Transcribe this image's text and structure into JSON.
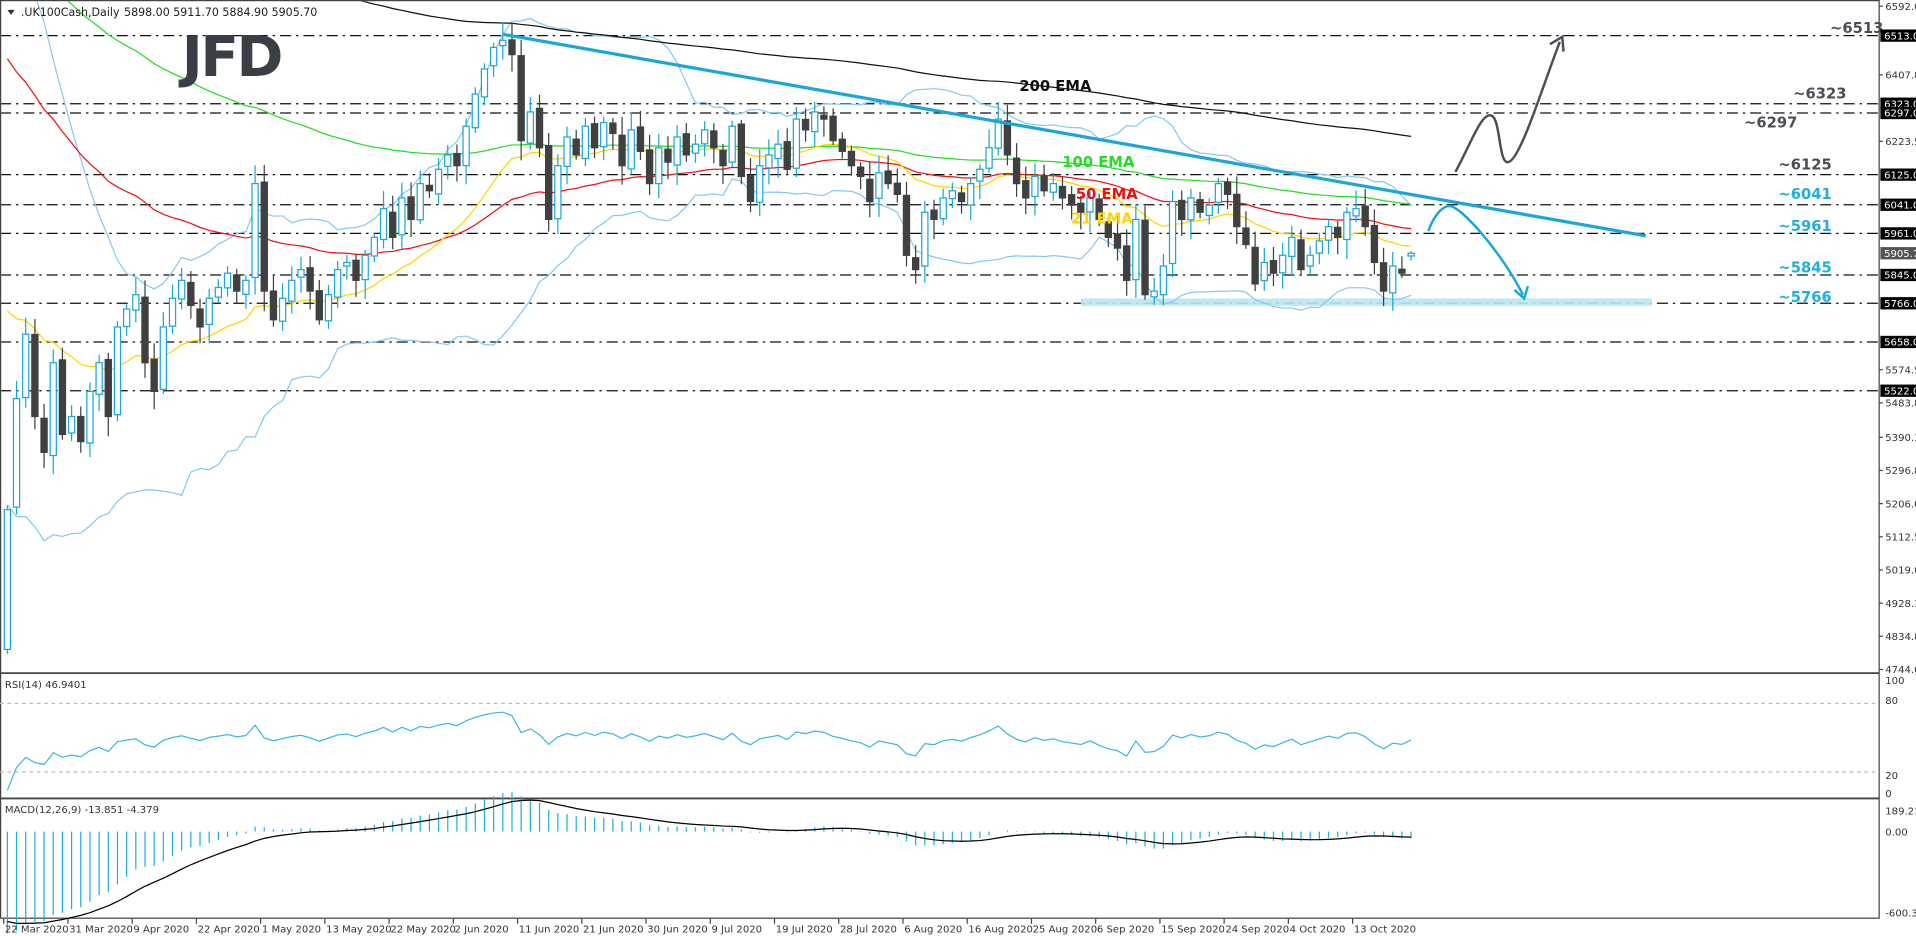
{
  "header": {
    "symbol": ".UK100Cash,Daily",
    "ohlc": "5898.00 5911.70 5884.90 5905.70"
  },
  "logo": "JFD",
  "chart_data": {
    "type": "candlestick",
    "title": ".UK100Cash,Daily",
    "last_bar": {
      "open": 5898.0,
      "high": 5911.7,
      "low": 5884.9,
      "close": 5905.7
    },
    "first_open": 4800,
    "closes": [
      5190,
      5500,
      5680,
      5450,
      5350,
      5600,
      5400,
      5450,
      5380,
      5520,
      5600,
      5450,
      5700,
      5750,
      5790,
      5600,
      5520,
      5700,
      5780,
      5830,
      5760,
      5700,
      5780,
      5810,
      5850,
      5800,
      5830,
      6100,
      5800,
      5720,
      5780,
      5830,
      5860,
      5800,
      5720,
      5790,
      5860,
      5880,
      5830,
      5900,
      5950,
      6030,
      5950,
      6060,
      6000,
      6100,
      6080,
      6140,
      6180,
      6150,
      6260,
      6350,
      6420,
      6480,
      6500,
      6460,
      6220,
      6300,
      6200,
      6000,
      6150,
      6230,
      6180,
      6260,
      6200,
      6270,
      6240,
      6150,
      6250,
      6190,
      6100,
      6200,
      6160,
      6230,
      6180,
      6210,
      6250,
      6200,
      6150,
      6260,
      6120,
      6050,
      6150,
      6180,
      6210,
      6140,
      6280,
      6250,
      6300,
      6280,
      6220,
      6190,
      6150,
      6120,
      6050,
      6130,
      6100,
      6070,
      5900,
      5860,
      6020,
      6000,
      6060,
      6080,
      6050,
      6100,
      6140,
      6200,
      6280,
      6180,
      6100,
      6060,
      6120,
      6080,
      6100,
      6060,
      6040,
      6020,
      6060,
      6000,
      5950,
      5920,
      5830,
      6000,
      5790,
      5800,
      5870,
      6050,
      6000,
      6060,
      6020,
      6040,
      6100,
      6070,
      5980,
      5930,
      5820,
      5880,
      5850,
      5900,
      5950,
      5860,
      5900,
      5940,
      5980,
      5950,
      6020,
      6030,
      5980,
      5880,
      5800,
      5870,
      5850,
      5905.7
    ],
    "price_axis": {
      "min": 4744.05,
      "max": 6592.05,
      "ticks": [
        "6592.05",
        "6407.80",
        "6223.55",
        "5574.55",
        "5483.80",
        "5390.30",
        "5296.80",
        "5206.05",
        "5112.55",
        "5019.05",
        "4928.30",
        "4834.80",
        "4744.05"
      ],
      "current_price": "5905.70"
    },
    "levels": [
      {
        "value": 6513,
        "axis_label": "6513.00",
        "label": "~6513",
        "color": "#4a4f57"
      },
      {
        "value": 6323,
        "axis_label": "6323.00",
        "label": "~6323",
        "color": "#4a4f57"
      },
      {
        "value": 6297,
        "axis_label": "6297.00",
        "label": "~6297",
        "color": "#4a4f57"
      },
      {
        "value": 6125,
        "axis_label": "6125.00",
        "label": "~6125",
        "color": "#4a4f57"
      },
      {
        "value": 6041,
        "axis_label": "6041.00",
        "label": "~6041",
        "color": "#1fb0e0"
      },
      {
        "value": 5961,
        "axis_label": "5961.00",
        "label": "~5961",
        "color": "#1fb0e0"
      },
      {
        "value": 5845,
        "axis_label": "5845.00",
        "label": "~5845",
        "color": "#1fb0e0"
      },
      {
        "value": 5766,
        "axis_label": "5766.00",
        "label": "~5766",
        "color": "#1fb0e0"
      },
      {
        "value": 5658,
        "axis_label": "5658.00",
        "label": "",
        "color": "#4a4f57"
      },
      {
        "value": 5522,
        "axis_label": "5522.00",
        "label": "",
        "color": "#4a4f57"
      }
    ],
    "ema_labels": [
      {
        "text": "200 EMA",
        "color": "#111111"
      },
      {
        "text": "100 EMA",
        "color": "#22dd22"
      },
      {
        "text": "50 EMA",
        "color": "#ee1111"
      },
      {
        "text": "21 EMA",
        "color": "#ffd400"
      }
    ],
    "x_labels": [
      "22 Mar 2020",
      "31 Mar 2020",
      "9 Apr 2020",
      "22 Apr 2020",
      "1 May 2020",
      "13 May 2020",
      "22 May 2020",
      "2 Jun 2020",
      "11 Jun 2020",
      "21 Jun 2020",
      "30 Jun 2020",
      "9 Jul 2020",
      "19 Jul 2020",
      "28 Jul 2020",
      "6 Aug 2020",
      "16 Aug 2020",
      "25 Aug 2020",
      "6 Sep 2020",
      "15 Sep 2020",
      "24 Sep 2020",
      "4 Oct 2020",
      "13 Oct 2020"
    ],
    "rsi": {
      "label": "RSI(14) 46.9401",
      "ticks": [
        "100",
        "80",
        "20",
        "0"
      ]
    },
    "macd": {
      "label": "MACD(12,26,9) -13.851 -4.379",
      "ticks": [
        "189.218",
        "0.00",
        "-600.388"
      ]
    },
    "colors": {
      "bull": "#1aa7d6",
      "bear": "#404040",
      "trendline": "#1ba6d9",
      "bands": "#86c8f2",
      "support_zone": "#b8e6f2"
    }
  }
}
